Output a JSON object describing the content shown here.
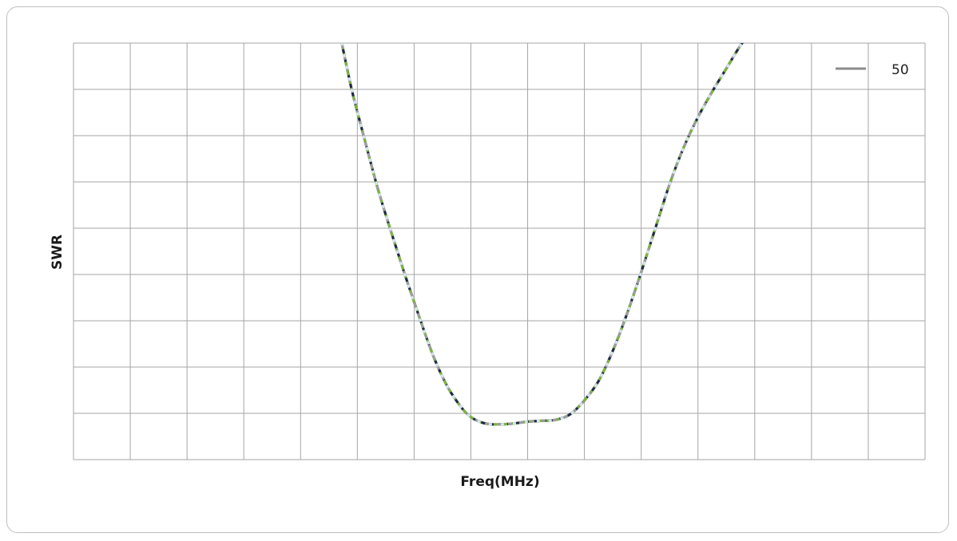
{
  "chart_data": {
    "type": "line",
    "title": "",
    "xlabel": "Freq(MHz)",
    "ylabel": "SWR",
    "grid": true,
    "legend_position": "top-right",
    "xlim": [
      0,
      15
    ],
    "ylim": [
      0,
      9
    ],
    "x_tick_labels": [],
    "y_tick_labels": [],
    "series": [
      {
        "name": "50",
        "color": "#8c8c8c",
        "x": [
          4.7,
          4.9,
          5.1,
          5.35,
          5.6,
          5.85,
          6.1,
          6.35,
          6.6,
          6.85,
          7.0,
          7.15,
          7.3,
          7.5,
          7.75,
          8.0,
          8.25,
          8.5,
          8.75,
          9.0,
          9.25,
          9.5,
          9.75,
          10.0,
          10.25,
          10.5,
          10.75,
          11.0,
          11.25,
          11.5,
          11.75,
          12.0
        ],
        "y": [
          9.15,
          8.0,
          7.05,
          5.9,
          4.9,
          3.95,
          3.05,
          2.2,
          1.55,
          1.1,
          0.92,
          0.82,
          0.77,
          0.76,
          0.78,
          0.82,
          0.84,
          0.86,
          0.98,
          1.28,
          1.7,
          2.35,
          3.15,
          4.05,
          5.0,
          5.95,
          6.75,
          7.4,
          7.95,
          8.45,
          8.95,
          9.35
        ]
      }
    ]
  }
}
